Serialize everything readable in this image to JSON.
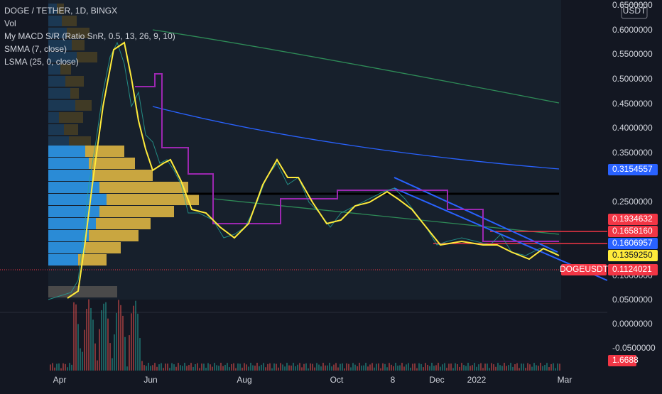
{
  "header": {
    "symbol": "DOGE / TETHER, 1D, BINGX",
    "indicators": [
      "Vol",
      "My MACD S/R (Ratio SnR, 0.5, 13, 26, 9, 10)",
      "SMMA (7, close)",
      "LSMA (25, 0, close)"
    ]
  },
  "currency": "USDT",
  "price_axis": [
    "0.6500000",
    "0.6000000",
    "0.5500000",
    "0.5000000",
    "0.4500000",
    "0.4000000",
    "0.3500000",
    "0.2500000",
    "0.1000000",
    "0.0500000"
  ],
  "price_tags": [
    {
      "label": "0.3154557",
      "color": "#2962ff"
    },
    {
      "label": "0.1934632",
      "color": "#f23645"
    },
    {
      "label": "0.1658160",
      "color": "#f23645"
    },
    {
      "label": "0.1606957",
      "color": "#2962ff"
    },
    {
      "label": "0.1359250",
      "color": "#ffeb3b"
    },
    {
      "label": "0.1124021",
      "color": "#f23645"
    }
  ],
  "symbol_tag": "DOGEUSDT",
  "volume_axis": [
    "0.0000000",
    "-0.0500000"
  ],
  "volume_tag": "1.6688",
  "time_axis": [
    "Apr",
    "Jun",
    "Aug",
    "Oct",
    "8",
    "Dec",
    "2022",
    "Mar"
  ]
}
